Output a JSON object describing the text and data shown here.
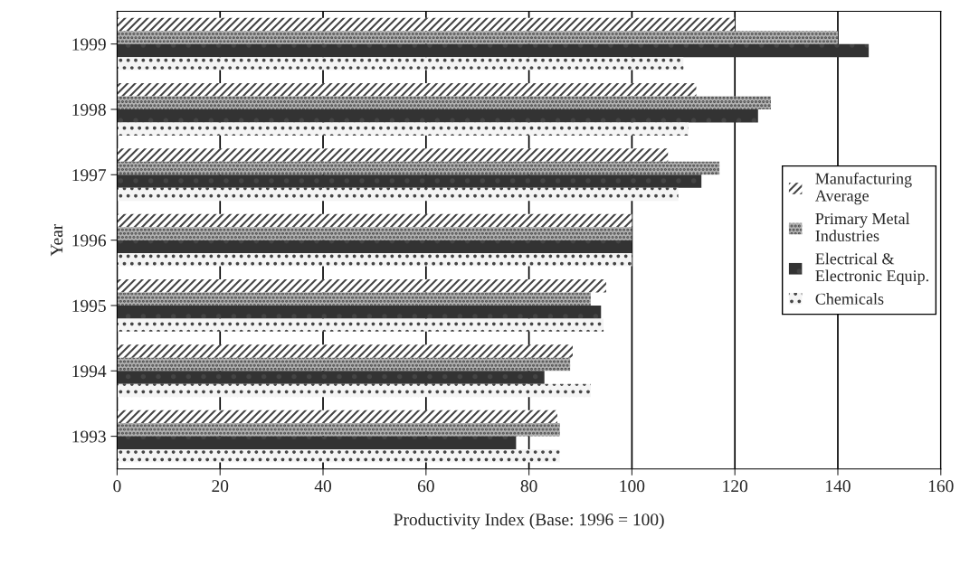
{
  "chart_data": {
    "type": "bar",
    "orientation": "horizontal",
    "xlabel": "Productivity Index (Base: 1996 = 100)",
    "ylabel": "Year",
    "categories": [
      "1999",
      "1998",
      "1997",
      "1996",
      "1995",
      "1994",
      "1993"
    ],
    "series": [
      {
        "name": "Manufacturing\nAverage",
        "color": "#ffffff",
        "values": [
          120,
          112.5,
          107,
          100,
          95,
          88.5,
          85.5
        ]
      },
      {
        "name": "Primary Metal\nIndustries",
        "color": "#b0b0b0",
        "values": [
          140,
          127,
          117,
          100,
          92,
          88,
          86
        ]
      },
      {
        "name": "Electrical &\nElectronic Equip.",
        "color": "#333333",
        "values": [
          146,
          124.5,
          113.5,
          100,
          94,
          83,
          77.5
        ]
      },
      {
        "name": "Chemicals",
        "color": "#f4f4f4",
        "values": [
          110,
          111,
          109,
          100,
          94.5,
          92,
          86
        ]
      }
    ],
    "xlim": [
      0,
      160
    ],
    "xticks": [
      0,
      20,
      40,
      60,
      80,
      100,
      120,
      140,
      160
    ],
    "grid": "x",
    "legend": "right"
  }
}
